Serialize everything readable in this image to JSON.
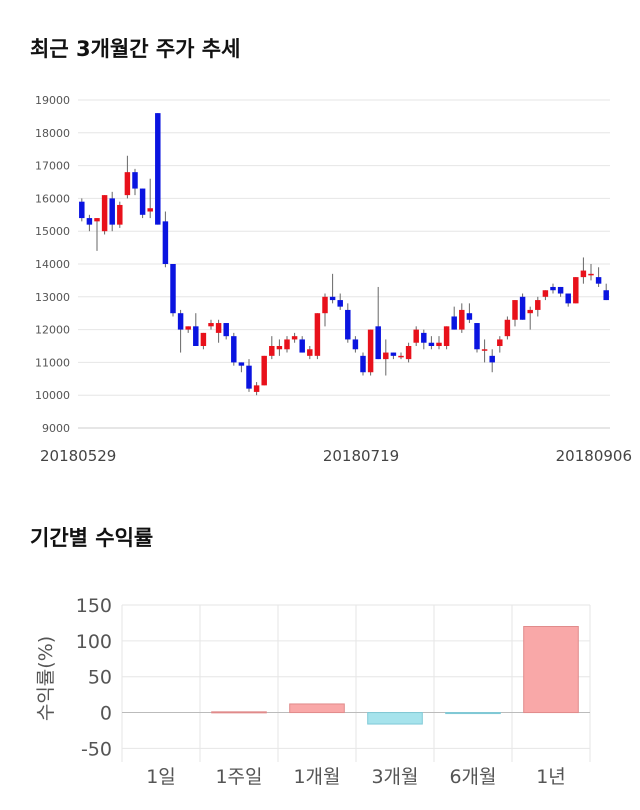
{
  "sections": {
    "price_title": "최근 3개월간 주가 추세",
    "returns_title": "기간별 수익률"
  },
  "colors": {
    "up": "#e8111b",
    "down": "#0a14e0",
    "bar_positive": "#f9a8a8",
    "bar_negative": "#a6e3ec",
    "grid": "#e6e6e6"
  },
  "chart_data": [
    {
      "type": "candlestick",
      "title": "최근 3개월간 주가 추세",
      "ylim": [
        9000,
        19000
      ],
      "y_ticks": [
        "9000",
        "10000",
        "11000",
        "12000",
        "13000",
        "14000",
        "15000",
        "16000",
        "17000",
        "18000",
        "19000"
      ],
      "x_ticks": [
        "20180529",
        "20180719",
        "20180906"
      ],
      "grid": "horizontal",
      "candles": [
        [
          15900,
          16000,
          15300,
          15400
        ],
        [
          15400,
          15500,
          15000,
          15200
        ],
        [
          15300,
          15400,
          14400,
          15400
        ],
        [
          15000,
          16100,
          14900,
          16100
        ],
        [
          16000,
          16200,
          15000,
          15200
        ],
        [
          15200,
          15900,
          15100,
          15800
        ],
        [
          16100,
          17300,
          16000,
          16800
        ],
        [
          16800,
          16900,
          16100,
          16300
        ],
        [
          16300,
          16300,
          15400,
          15500
        ],
        [
          15600,
          16600,
          15400,
          15700
        ],
        [
          18600,
          18600,
          15200,
          15200
        ],
        [
          15300,
          15600,
          13900,
          14000
        ],
        [
          14000,
          14000,
          12400,
          12500
        ],
        [
          12500,
          12600,
          11300,
          12000
        ],
        [
          12000,
          12100,
          11900,
          12100
        ],
        [
          12100,
          12500,
          11500,
          11500
        ],
        [
          11500,
          11900,
          11400,
          11900
        ],
        [
          12100,
          12300,
          12000,
          12200
        ],
        [
          11900,
          12300,
          11600,
          12200
        ],
        [
          12200,
          12200,
          11700,
          11800
        ],
        [
          11800,
          11900,
          10900,
          11000
        ],
        [
          11000,
          11000,
          10700,
          10900
        ],
        [
          10900,
          11100,
          10100,
          10200
        ],
        [
          10100,
          10400,
          10000,
          10300
        ],
        [
          10300,
          11200,
          10300,
          11200
        ],
        [
          11200,
          11800,
          11100,
          11500
        ],
        [
          11400,
          11700,
          11200,
          11500
        ],
        [
          11400,
          11800,
          11300,
          11700
        ],
        [
          11700,
          11900,
          11600,
          11800
        ],
        [
          11700,
          11800,
          11300,
          11300
        ],
        [
          11200,
          11500,
          11100,
          11400
        ],
        [
          11200,
          12500,
          11100,
          12500
        ],
        [
          12500,
          13100,
          12100,
          13000
        ],
        [
          13000,
          13700,
          12800,
          12900
        ],
        [
          12900,
          13100,
          12600,
          12700
        ],
        [
          12600,
          12800,
          11600,
          11700
        ],
        [
          11700,
          11800,
          11300,
          11400
        ],
        [
          11200,
          11300,
          10600,
          10700
        ],
        [
          10700,
          12000,
          10600,
          12000
        ],
        [
          12100,
          13300,
          11100,
          11100
        ],
        [
          11100,
          11700,
          10600,
          11300
        ],
        [
          11300,
          11300,
          11100,
          11200
        ],
        [
          11200,
          11300,
          11100,
          11200
        ],
        [
          11100,
          11600,
          11000,
          11500
        ],
        [
          11600,
          12100,
          11500,
          12000
        ],
        [
          11900,
          12000,
          11400,
          11600
        ],
        [
          11600,
          11800,
          11400,
          11500
        ],
        [
          11500,
          11800,
          11400,
          11600
        ],
        [
          11500,
          12100,
          11400,
          12100
        ],
        [
          12400,
          12700,
          12000,
          12000
        ],
        [
          12000,
          12800,
          11900,
          12600
        ],
        [
          12500,
          12800,
          12200,
          12300
        ],
        [
          12200,
          12200,
          11300,
          11400
        ],
        [
          11400,
          11700,
          11000,
          11400
        ],
        [
          11200,
          11400,
          10700,
          11000
        ],
        [
          11500,
          11800,
          11300,
          11700
        ],
        [
          11800,
          12400,
          11700,
          12300
        ],
        [
          12300,
          12900,
          12100,
          12900
        ],
        [
          13000,
          13100,
          12300,
          12300
        ],
        [
          12500,
          12700,
          12000,
          12600
        ],
        [
          12600,
          13000,
          12400,
          12900
        ],
        [
          13000,
          13200,
          12900,
          13200
        ],
        [
          13300,
          13400,
          13100,
          13200
        ],
        [
          13300,
          13300,
          13000,
          13100
        ],
        [
          13100,
          13100,
          12700,
          12800
        ],
        [
          12800,
          13600,
          12800,
          13600
        ],
        [
          13600,
          14200,
          13400,
          13800
        ],
        [
          13700,
          14000,
          13500,
          13700
        ],
        [
          13600,
          13900,
          13300,
          13400
        ],
        [
          13200,
          13400,
          12900,
          12900
        ]
      ]
    },
    {
      "type": "bar",
      "title": "기간별 수익률",
      "ylabel": "수익률(%)",
      "ylim": [
        -55,
        150
      ],
      "y_ticks": [
        "150",
        "100",
        "50",
        "0",
        "-50"
      ],
      "categories": [
        "1일",
        "1주일",
        "1개월",
        "3개월",
        "6개월",
        "1년"
      ],
      "values": [
        0,
        1,
        12,
        -16,
        -1,
        120
      ],
      "grid": true
    }
  ]
}
